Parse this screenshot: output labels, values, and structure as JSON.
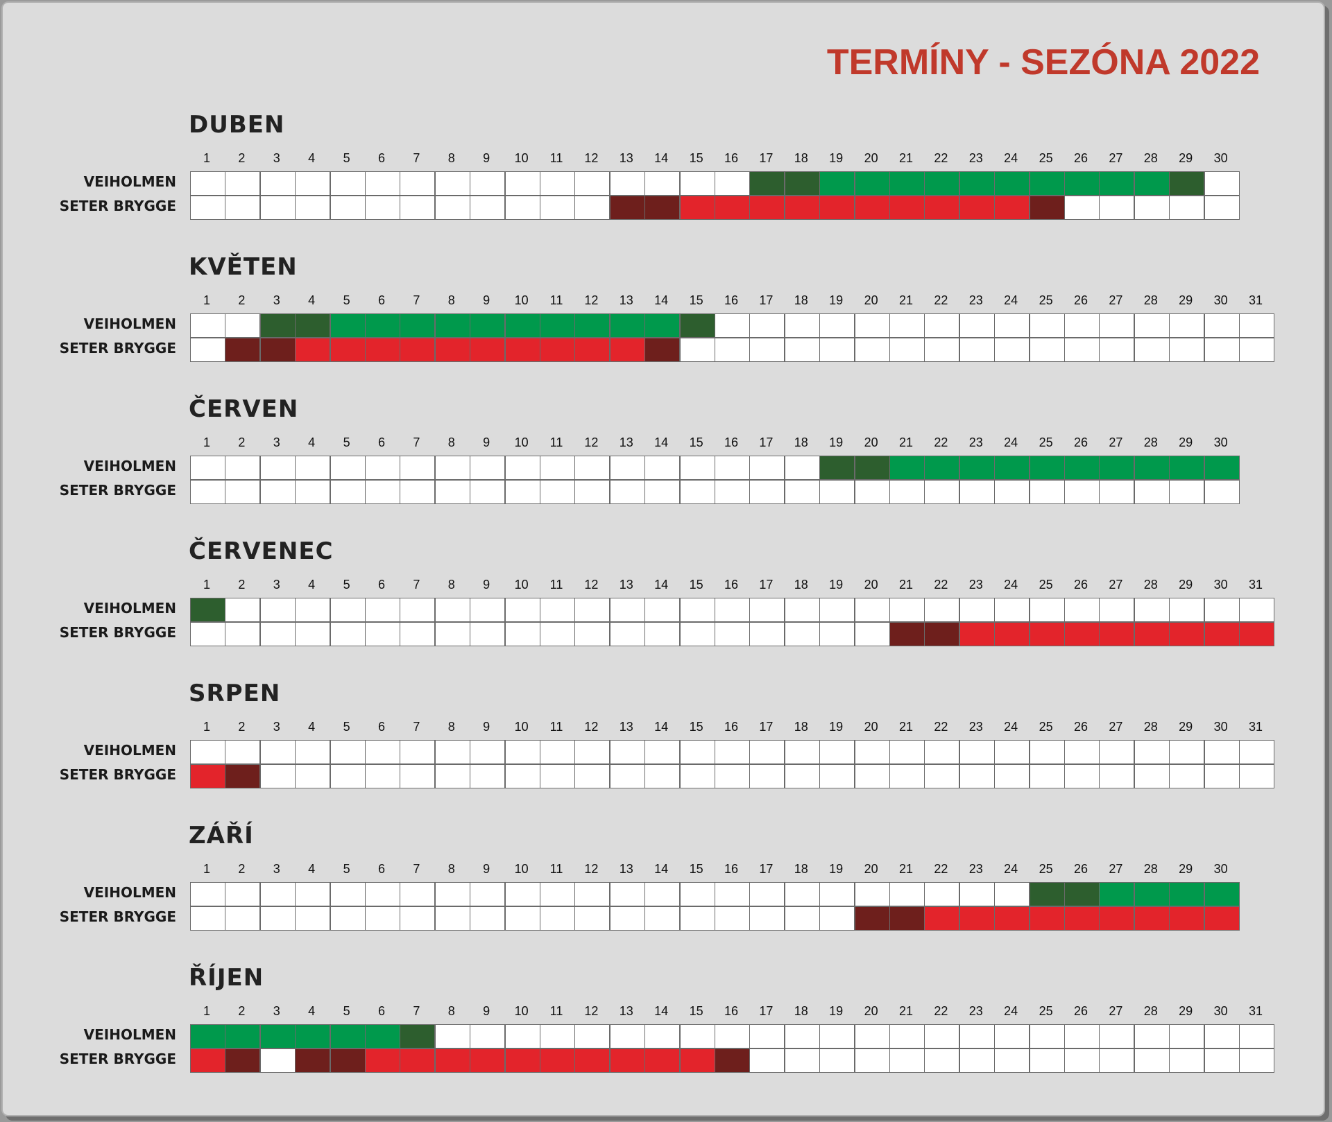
{
  "title": "TERMÍNY - SEZÓNA 2022",
  "row_labels": [
    "VEIHOLMEN",
    "SETER BRYGGE"
  ],
  "colors": {
    "free": "#ffffff",
    "veiholmen_booked": "#00994c",
    "veiholmen_transfer": "#2d5e2e",
    "seter_booked": "#e3242b",
    "seter_transfer": "#6e1f1c"
  },
  "months": [
    {
      "name": "DUBEN",
      "days": 30,
      "veiholmen": {
        "dark": [
          17,
          18,
          29
        ],
        "booked": [
          19,
          20,
          21,
          22,
          23,
          24,
          25,
          26,
          27,
          28
        ]
      },
      "seter": {
        "dark": [
          13,
          14,
          25
        ],
        "booked": [
          15,
          16,
          17,
          18,
          19,
          20,
          21,
          22,
          23,
          24
        ]
      }
    },
    {
      "name": "KVĚTEN",
      "days": 31,
      "veiholmen": {
        "dark": [
          3,
          4,
          15
        ],
        "booked": [
          5,
          6,
          7,
          8,
          9,
          10,
          11,
          12,
          13,
          14
        ]
      },
      "seter": {
        "dark": [
          2,
          3,
          14
        ],
        "booked": [
          4,
          5,
          6,
          7,
          8,
          9,
          10,
          11,
          12,
          13
        ]
      }
    },
    {
      "name": "ČERVEN",
      "days": 30,
      "veiholmen": {
        "dark": [
          19,
          20
        ],
        "booked": [
          21,
          22,
          23,
          24,
          25,
          26,
          27,
          28,
          29,
          30
        ]
      },
      "seter": {
        "dark": [],
        "booked": []
      }
    },
    {
      "name": "ČERVENEC",
      "days": 31,
      "veiholmen": {
        "dark": [
          1
        ],
        "booked": []
      },
      "seter": {
        "dark": [
          21,
          22
        ],
        "booked": [
          23,
          24,
          25,
          26,
          27,
          28,
          29,
          30,
          31
        ]
      }
    },
    {
      "name": "SRPEN",
      "days": 31,
      "veiholmen": {
        "dark": [],
        "booked": []
      },
      "seter": {
        "dark": [
          2
        ],
        "booked": [
          1
        ]
      }
    },
    {
      "name": "ZÁŘÍ",
      "days": 30,
      "veiholmen": {
        "dark": [
          25,
          26
        ],
        "booked": [
          27,
          28,
          29,
          30
        ]
      },
      "seter": {
        "dark": [
          20,
          21
        ],
        "booked": [
          22,
          23,
          24,
          25,
          26,
          27,
          28,
          29,
          30
        ]
      }
    },
    {
      "name": "ŘÍJEN",
      "days": 31,
      "veiholmen": {
        "dark": [
          7
        ],
        "booked": [
          1,
          2,
          3,
          4,
          5,
          6
        ]
      },
      "seter": {
        "dark": [
          2,
          4,
          5,
          16
        ],
        "booked": [
          1,
          6,
          7,
          8,
          9,
          10,
          11,
          12,
          13,
          14,
          15
        ]
      }
    }
  ]
}
